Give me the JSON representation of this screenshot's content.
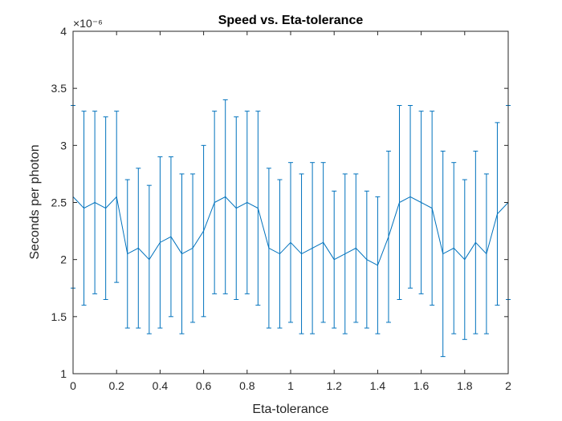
{
  "chart_data": {
    "type": "line",
    "title": "Speed vs. Eta-tolerance",
    "xlabel": "Eta-tolerance",
    "ylabel": "Seconds per photon",
    "exponent_label": "×10⁻⁶",
    "xlim": [
      0,
      2
    ],
    "ylim": [
      1,
      4
    ],
    "xticks": [
      "0",
      "0.2",
      "0.4",
      "0.6",
      "0.8",
      "1",
      "1.2",
      "1.4",
      "1.6",
      "1.8",
      "2"
    ],
    "yticks": [
      "1",
      "1.5",
      "2",
      "2.5",
      "3",
      "3.5",
      "4"
    ],
    "grid": false,
    "legend": "none",
    "error_bars": true,
    "series": [
      {
        "color": "#0072BD",
        "x": [
          0.0,
          0.05,
          0.1,
          0.15,
          0.2,
          0.25,
          0.3,
          0.35,
          0.4,
          0.45,
          0.5,
          0.55,
          0.6,
          0.65,
          0.7,
          0.75,
          0.8,
          0.85,
          0.9,
          0.95,
          1.0,
          1.05,
          1.1,
          1.15,
          1.2,
          1.25,
          1.3,
          1.35,
          1.4,
          1.45,
          1.5,
          1.55,
          1.6,
          1.65,
          1.7,
          1.75,
          1.8,
          1.85,
          1.9,
          1.95,
          2.0
        ],
        "y": [
          2.55,
          2.45,
          2.5,
          2.45,
          2.55,
          2.05,
          2.1,
          2.0,
          2.15,
          2.2,
          2.05,
          2.1,
          2.25,
          2.5,
          2.55,
          2.45,
          2.5,
          2.45,
          2.1,
          2.05,
          2.15,
          2.05,
          2.1,
          2.15,
          2.0,
          2.05,
          2.1,
          2.0,
          1.95,
          2.2,
          2.5,
          2.55,
          2.5,
          2.45,
          2.05,
          2.1,
          2.0,
          2.15,
          2.05,
          2.4,
          2.5
        ],
        "err": [
          0.8,
          0.85,
          0.8,
          0.8,
          0.75,
          0.65,
          0.7,
          0.65,
          0.75,
          0.7,
          0.7,
          0.65,
          0.75,
          0.8,
          0.85,
          0.8,
          0.8,
          0.85,
          0.7,
          0.65,
          0.7,
          0.7,
          0.75,
          0.7,
          0.6,
          0.7,
          0.65,
          0.6,
          0.6,
          0.75,
          0.85,
          0.8,
          0.8,
          0.85,
          0.9,
          0.75,
          0.7,
          0.8,
          0.7,
          0.8,
          0.85
        ]
      }
    ]
  }
}
